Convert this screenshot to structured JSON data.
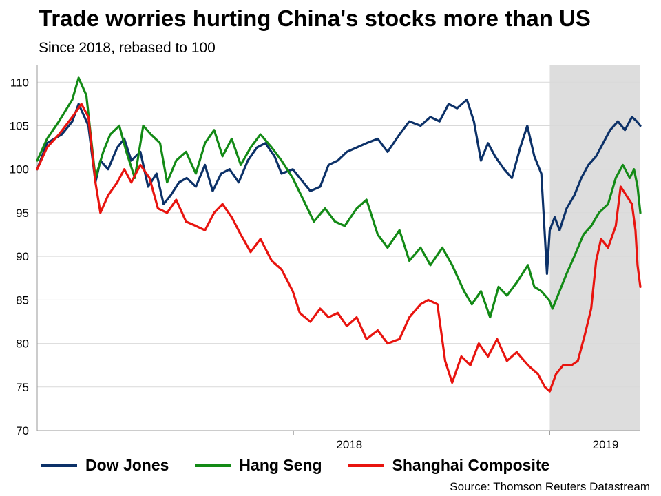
{
  "chart_data": {
    "type": "line",
    "title": "Trade worries hurting China's stocks more than US",
    "subtitle": "Since 2018, rebased to 100",
    "source": "Source: Thomson Reuters Datastream",
    "ylim": [
      70,
      112
    ],
    "yticks": [
      70,
      75,
      80,
      85,
      90,
      95,
      100,
      105,
      110
    ],
    "xlim": [
      "2017-01-01",
      "2019-05-10"
    ],
    "xtick_labels": [
      {
        "date": "2018-01-01",
        "label": "2018"
      },
      {
        "date": "2019-01-01",
        "label": "2019"
      }
    ],
    "shaded_region": {
      "start": "2019-01-01",
      "end": "2019-05-10",
      "color": "#dddddd"
    },
    "grid": true,
    "legend_position": "bottom",
    "series": [
      {
        "name": "Dow Jones",
        "color": "#0c3168",
        "points": [
          [
            "2017-01-01",
            100
          ],
          [
            "2017-01-15",
            103
          ],
          [
            "2017-02-05",
            104
          ],
          [
            "2017-02-20",
            105.5
          ],
          [
            "2017-03-01",
            107.5
          ],
          [
            "2017-03-15",
            105
          ],
          [
            "2017-03-25",
            98.5
          ],
          [
            "2017-04-01",
            101
          ],
          [
            "2017-04-12",
            100
          ],
          [
            "2017-04-25",
            102.5
          ],
          [
            "2017-05-05",
            103.5
          ],
          [
            "2017-05-15",
            101
          ],
          [
            "2017-05-28",
            102
          ],
          [
            "2017-06-08",
            98
          ],
          [
            "2017-06-20",
            99.5
          ],
          [
            "2017-06-30",
            96
          ],
          [
            "2017-07-10",
            97
          ],
          [
            "2017-07-22",
            98.5
          ],
          [
            "2017-08-02",
            99
          ],
          [
            "2017-08-15",
            98
          ],
          [
            "2017-08-28",
            100.5
          ],
          [
            "2017-09-08",
            97.5
          ],
          [
            "2017-09-20",
            99.5
          ],
          [
            "2017-10-02",
            100
          ],
          [
            "2017-10-15",
            98.5
          ],
          [
            "2017-10-28",
            101
          ],
          [
            "2017-11-10",
            102.5
          ],
          [
            "2017-11-22",
            103
          ],
          [
            "2017-12-05",
            101.5
          ],
          [
            "2017-12-15",
            99.5
          ],
          [
            "2017-12-31",
            100
          ],
          [
            "2018-01-10",
            99
          ],
          [
            "2018-01-25",
            97.5
          ],
          [
            "2018-02-08",
            98
          ],
          [
            "2018-02-20",
            100.5
          ],
          [
            "2018-03-05",
            101
          ],
          [
            "2018-03-18",
            102
          ],
          [
            "2018-04-01",
            102.5
          ],
          [
            "2018-04-15",
            103
          ],
          [
            "2018-05-01",
            103.5
          ],
          [
            "2018-05-15",
            102
          ],
          [
            "2018-06-01",
            104
          ],
          [
            "2018-06-15",
            105.5
          ],
          [
            "2018-07-01",
            105
          ],
          [
            "2018-07-15",
            106
          ],
          [
            "2018-07-28",
            105.5
          ],
          [
            "2018-08-10",
            107.5
          ],
          [
            "2018-08-22",
            107
          ],
          [
            "2018-09-05",
            108
          ],
          [
            "2018-09-15",
            105.5
          ],
          [
            "2018-09-25",
            101
          ],
          [
            "2018-10-05",
            103
          ],
          [
            "2018-10-15",
            101.5
          ],
          [
            "2018-10-28",
            100
          ],
          [
            "2018-11-08",
            99
          ],
          [
            "2018-11-20",
            102.5
          ],
          [
            "2018-11-30",
            105
          ],
          [
            "2018-12-10",
            101.5
          ],
          [
            "2018-12-20",
            99.5
          ],
          [
            "2018-12-28",
            88
          ],
          [
            "2019-01-01",
            93
          ],
          [
            "2019-01-08",
            94.5
          ],
          [
            "2019-01-15",
            93
          ],
          [
            "2019-01-25",
            95.5
          ],
          [
            "2019-02-05",
            97
          ],
          [
            "2019-02-15",
            99
          ],
          [
            "2019-02-25",
            100.5
          ],
          [
            "2019-03-08",
            101.5
          ],
          [
            "2019-03-18",
            103
          ],
          [
            "2019-03-28",
            104.5
          ],
          [
            "2019-04-08",
            105.5
          ],
          [
            "2019-04-18",
            104.5
          ],
          [
            "2019-04-28",
            106
          ],
          [
            "2019-05-05",
            105.5
          ],
          [
            "2019-05-10",
            105
          ]
        ]
      },
      {
        "name": "Hang Seng",
        "color": "#138a16",
        "points": [
          [
            "2017-01-01",
            101
          ],
          [
            "2017-01-15",
            103.5
          ],
          [
            "2017-02-01",
            105.5
          ],
          [
            "2017-02-20",
            108
          ],
          [
            "2017-03-01",
            110.5
          ],
          [
            "2017-03-12",
            108.5
          ],
          [
            "2017-03-25",
            99
          ],
          [
            "2017-04-05",
            102
          ],
          [
            "2017-04-15",
            104
          ],
          [
            "2017-04-28",
            105
          ],
          [
            "2017-05-08",
            102
          ],
          [
            "2017-05-20",
            99
          ],
          [
            "2017-06-01",
            105
          ],
          [
            "2017-06-12",
            104
          ],
          [
            "2017-06-25",
            103
          ],
          [
            "2017-07-05",
            98.5
          ],
          [
            "2017-07-18",
            101
          ],
          [
            "2017-08-01",
            102
          ],
          [
            "2017-08-15",
            99.5
          ],
          [
            "2017-08-28",
            103
          ],
          [
            "2017-09-10",
            104.5
          ],
          [
            "2017-09-22",
            101.5
          ],
          [
            "2017-10-05",
            103.5
          ],
          [
            "2017-10-18",
            100.5
          ],
          [
            "2017-11-01",
            102.5
          ],
          [
            "2017-11-15",
            104
          ],
          [
            "2017-12-01",
            102.5
          ],
          [
            "2017-12-15",
            101
          ],
          [
            "2017-12-31",
            99
          ],
          [
            "2018-01-15",
            96.5
          ],
          [
            "2018-01-30",
            94
          ],
          [
            "2018-02-15",
            95.5
          ],
          [
            "2018-03-01",
            94
          ],
          [
            "2018-03-15",
            93.5
          ],
          [
            "2018-04-01",
            95.5
          ],
          [
            "2018-04-15",
            96.5
          ],
          [
            "2018-05-01",
            92.5
          ],
          [
            "2018-05-15",
            91
          ],
          [
            "2018-06-01",
            93
          ],
          [
            "2018-06-15",
            89.5
          ],
          [
            "2018-07-01",
            91
          ],
          [
            "2018-07-15",
            89
          ],
          [
            "2018-08-01",
            91
          ],
          [
            "2018-08-15",
            89
          ],
          [
            "2018-09-01",
            86
          ],
          [
            "2018-09-12",
            84.5
          ],
          [
            "2018-09-25",
            86
          ],
          [
            "2018-10-08",
            83
          ],
          [
            "2018-10-20",
            86.5
          ],
          [
            "2018-11-01",
            85.5
          ],
          [
            "2018-11-15",
            87
          ],
          [
            "2018-12-01",
            89
          ],
          [
            "2018-12-10",
            86.5
          ],
          [
            "2018-12-20",
            86
          ],
          [
            "2018-12-31",
            85
          ],
          [
            "2019-01-05",
            84
          ],
          [
            "2019-01-15",
            86
          ],
          [
            "2019-01-25",
            88
          ],
          [
            "2019-02-05",
            90
          ],
          [
            "2019-02-18",
            92.5
          ],
          [
            "2019-03-01",
            93.5
          ],
          [
            "2019-03-12",
            95
          ],
          [
            "2019-03-25",
            96
          ],
          [
            "2019-04-05",
            99
          ],
          [
            "2019-04-15",
            100.5
          ],
          [
            "2019-04-25",
            99
          ],
          [
            "2019-05-01",
            100
          ],
          [
            "2019-05-06",
            98
          ],
          [
            "2019-05-10",
            95
          ]
        ]
      },
      {
        "name": "Shanghai Composite",
        "color": "#e8140f",
        "points": [
          [
            "2017-01-01",
            100
          ],
          [
            "2017-01-15",
            102.5
          ],
          [
            "2017-02-01",
            104
          ],
          [
            "2017-02-20",
            106
          ],
          [
            "2017-03-05",
            107.5
          ],
          [
            "2017-03-15",
            106
          ],
          [
            "2017-03-25",
            98.5
          ],
          [
            "2017-04-01",
            95
          ],
          [
            "2017-04-12",
            97
          ],
          [
            "2017-04-25",
            98.5
          ],
          [
            "2017-05-05",
            100
          ],
          [
            "2017-05-15",
            98.5
          ],
          [
            "2017-05-28",
            100.5
          ],
          [
            "2017-06-10",
            99
          ],
          [
            "2017-06-22",
            95.5
          ],
          [
            "2017-07-05",
            95
          ],
          [
            "2017-07-18",
            96.5
          ],
          [
            "2017-08-01",
            94
          ],
          [
            "2017-08-15",
            93.5
          ],
          [
            "2017-08-28",
            93
          ],
          [
            "2017-09-10",
            95
          ],
          [
            "2017-09-22",
            96
          ],
          [
            "2017-10-05",
            94.5
          ],
          [
            "2017-10-18",
            92.5
          ],
          [
            "2017-11-01",
            90.5
          ],
          [
            "2017-11-15",
            92
          ],
          [
            "2017-12-01",
            89.5
          ],
          [
            "2017-12-15",
            88.5
          ],
          [
            "2017-12-31",
            86
          ],
          [
            "2018-01-10",
            83.5
          ],
          [
            "2018-01-25",
            82.5
          ],
          [
            "2018-02-08",
            84
          ],
          [
            "2018-02-20",
            83
          ],
          [
            "2018-03-05",
            83.5
          ],
          [
            "2018-03-18",
            82
          ],
          [
            "2018-04-01",
            83
          ],
          [
            "2018-04-15",
            80.5
          ],
          [
            "2018-05-01",
            81.5
          ],
          [
            "2018-05-15",
            80
          ],
          [
            "2018-06-01",
            80.5
          ],
          [
            "2018-06-15",
            83
          ],
          [
            "2018-07-01",
            84.5
          ],
          [
            "2018-07-12",
            85
          ],
          [
            "2018-07-25",
            84.5
          ],
          [
            "2018-08-05",
            78
          ],
          [
            "2018-08-15",
            75.5
          ],
          [
            "2018-08-28",
            78.5
          ],
          [
            "2018-09-10",
            77.5
          ],
          [
            "2018-09-22",
            80
          ],
          [
            "2018-10-05",
            78.5
          ],
          [
            "2018-10-18",
            80.5
          ],
          [
            "2018-11-01",
            78
          ],
          [
            "2018-11-15",
            79
          ],
          [
            "2018-12-01",
            77.5
          ],
          [
            "2018-12-15",
            76.5
          ],
          [
            "2018-12-25",
            75
          ],
          [
            "2019-01-01",
            74.5
          ],
          [
            "2019-01-10",
            76.5
          ],
          [
            "2019-01-20",
            77.5
          ],
          [
            "2019-02-01",
            77.5
          ],
          [
            "2019-02-10",
            78
          ],
          [
            "2019-02-20",
            81
          ],
          [
            "2019-03-01",
            84
          ],
          [
            "2019-03-08",
            89.5
          ],
          [
            "2019-03-15",
            92
          ],
          [
            "2019-03-25",
            91
          ],
          [
            "2019-04-05",
            93.5
          ],
          [
            "2019-04-12",
            98
          ],
          [
            "2019-04-20",
            97
          ],
          [
            "2019-04-28",
            96
          ],
          [
            "2019-05-03",
            93
          ],
          [
            "2019-05-06",
            89
          ],
          [
            "2019-05-10",
            86.5
          ]
        ]
      }
    ]
  }
}
